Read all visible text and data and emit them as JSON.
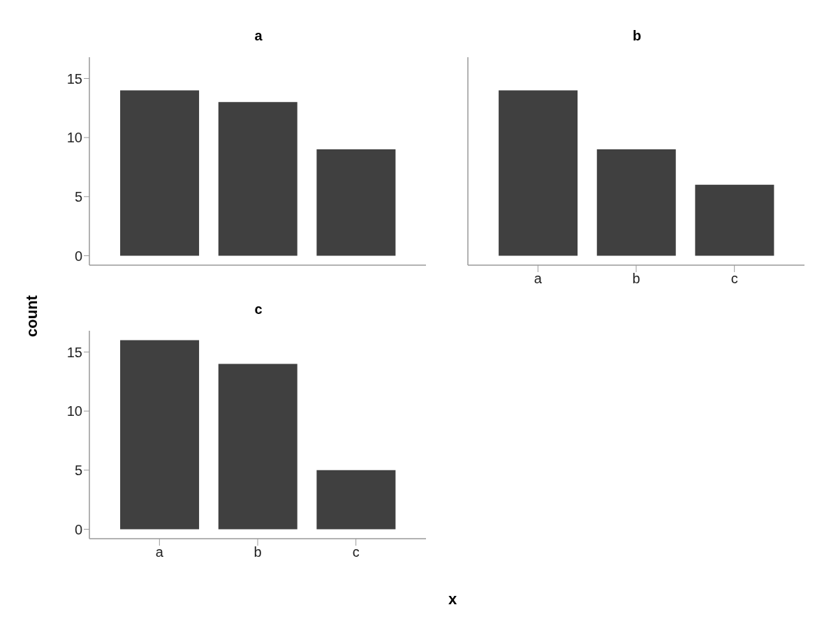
{
  "chart_data": [
    {
      "type": "bar",
      "title": "a",
      "ylabel": "count",
      "categories": [
        null,
        null,
        null
      ],
      "values": [
        14,
        13,
        9
      ],
      "color": "#404040",
      "ylim": [
        -0.8,
        16.8
      ],
      "yticks": [
        0,
        5,
        10,
        15
      ],
      "grid": false,
      "tick_labels": "y"
    },
    {
      "type": "bar",
      "title": "b",
      "categories": [
        "a",
        "b",
        "c"
      ],
      "values": [
        14,
        9,
        6
      ],
      "color": "#404040",
      "ylim": [
        -0.8,
        16.8
      ],
      "yticks": [
        0,
        5,
        10,
        15
      ],
      "grid": false,
      "tick_labels": "x"
    },
    {
      "type": "bar",
      "title": "c",
      "xlabel": "x",
      "categories": [
        "a",
        "b",
        "c"
      ],
      "values": [
        16,
        14,
        5
      ],
      "color": "#404040",
      "ylim": [
        -0.8,
        16.8
      ],
      "yticks": [
        0,
        5,
        10,
        15
      ],
      "grid": false
    }
  ]
}
